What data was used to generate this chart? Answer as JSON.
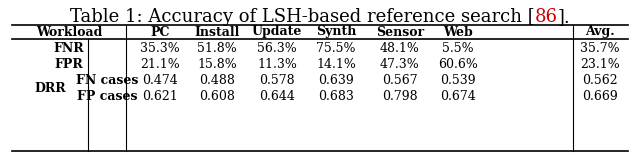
{
  "title_parts": [
    {
      "text": "Table 1: Accuracy of LSH-based reference search [",
      "color": "#000000"
    },
    {
      "text": "86",
      "color": "#cc0000"
    },
    {
      "text": "].",
      "color": "#000000"
    }
  ],
  "col_headers": [
    "Workload",
    "PC",
    "Install",
    "Update",
    "Synth",
    "Sensor",
    "Web",
    "Avg."
  ],
  "rows": [
    {
      "row_label": "FNR",
      "group": null,
      "values": [
        "35.3%",
        "51.8%",
        "56.3%",
        "75.5%",
        "48.1%",
        "5.5%",
        "35.7%"
      ]
    },
    {
      "row_label": "FPR",
      "group": null,
      "values": [
        "21.1%",
        "15.8%",
        "11.3%",
        "14.1%",
        "47.3%",
        "60.6%",
        "23.1%"
      ]
    },
    {
      "row_label": "FN cases",
      "group": "DRR",
      "values": [
        "0.474",
        "0.488",
        "0.578",
        "0.639",
        "0.567",
        "0.539",
        "0.562"
      ]
    },
    {
      "row_label": "FP cases",
      "group": "DRR",
      "values": [
        "0.621",
        "0.608",
        "0.644",
        "0.683",
        "0.798",
        "0.674",
        "0.669"
      ]
    }
  ],
  "title_fontsize": 13,
  "table_fontsize": 9,
  "bg_color": "#ffffff"
}
